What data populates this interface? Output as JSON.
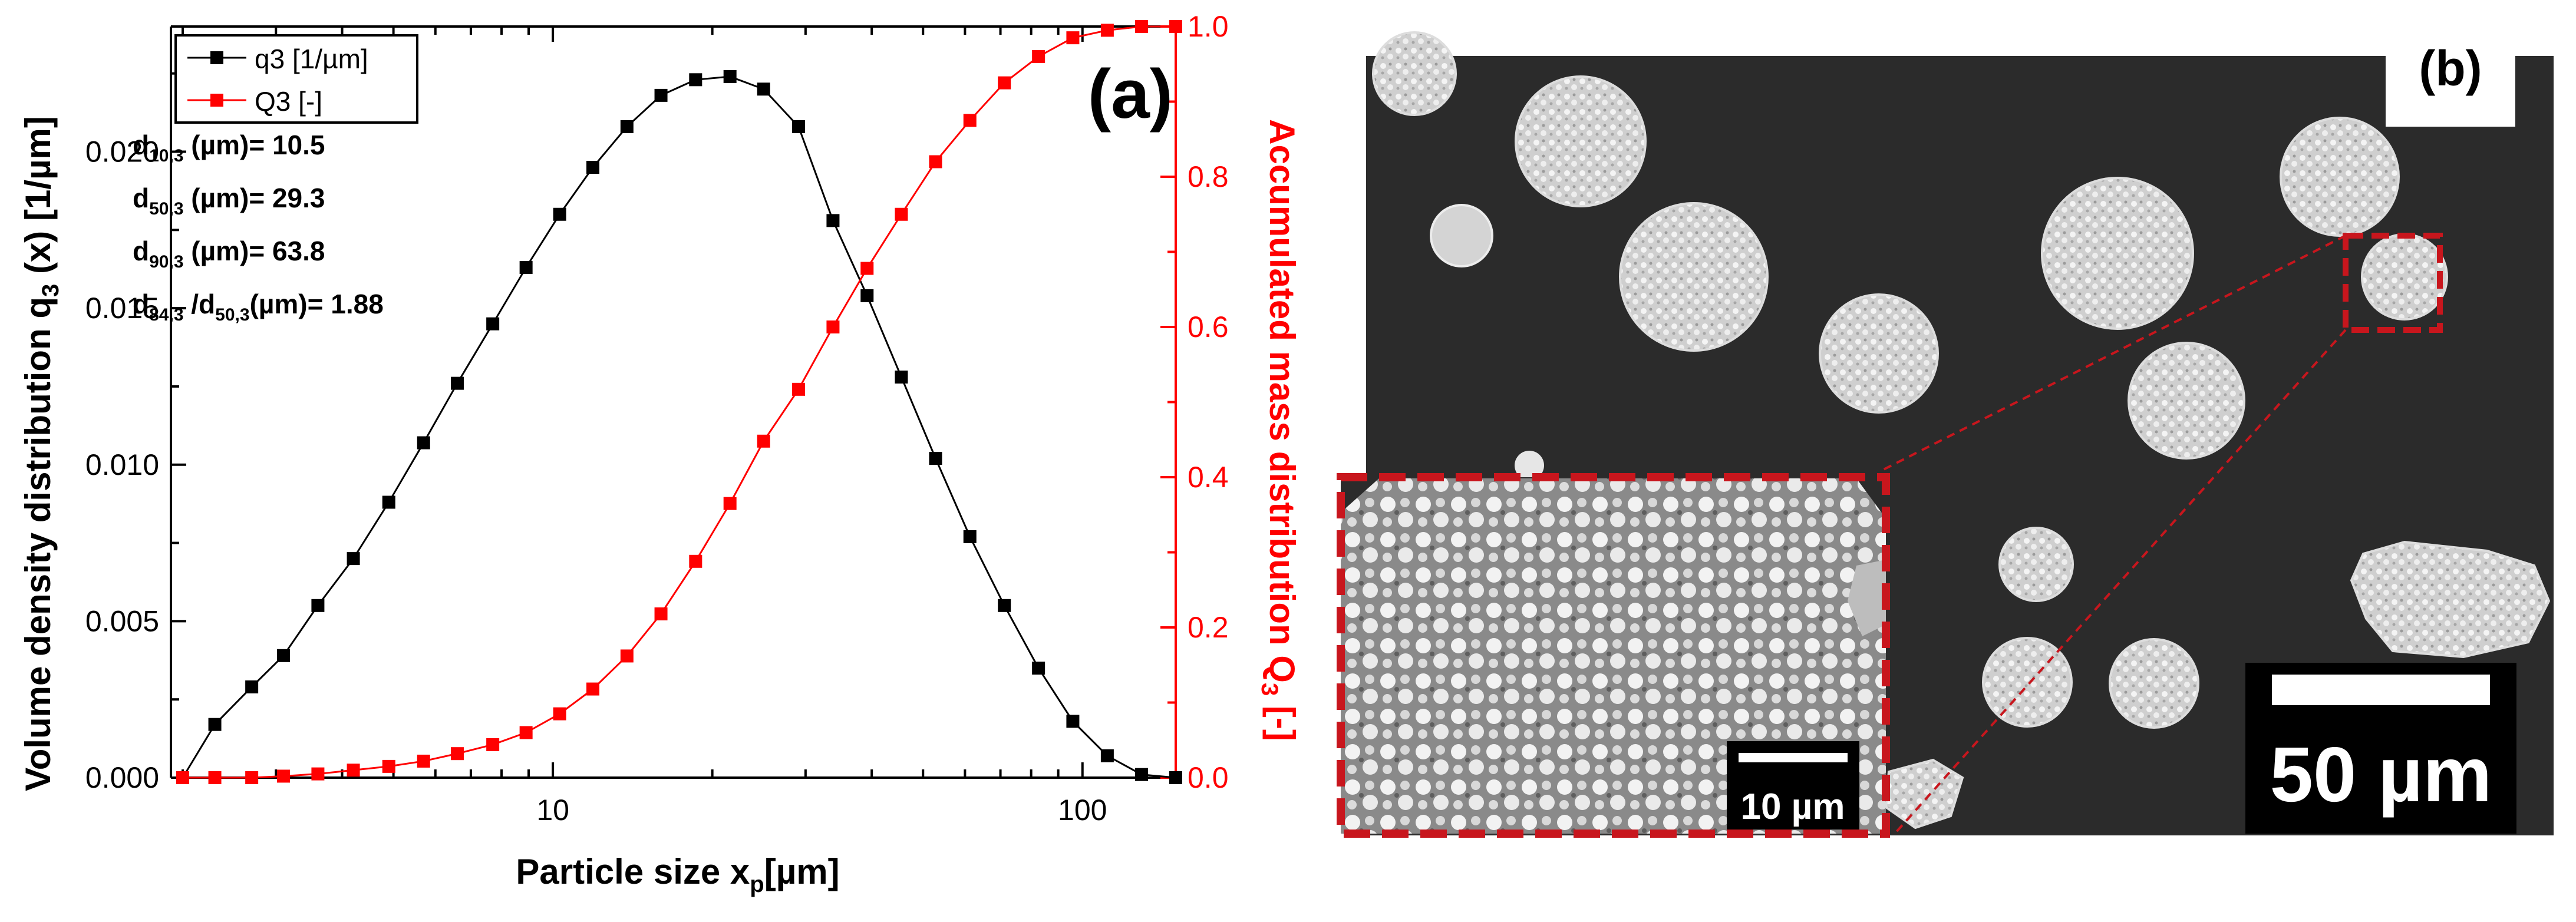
{
  "chart_data": {
    "type": "line",
    "x_scale": "log",
    "xlim": [
      1.9,
      150
    ],
    "x_ticks": [
      10,
      100
    ],
    "x_tick_labels": [
      "10",
      "100"
    ],
    "xlabel_pre": "Particle size x",
    "xlabel_sub": "p",
    "xlabel_post": "[µm]",
    "ylabel_left_pre": "Volume density distribution q",
    "ylabel_left_sub": "3",
    "ylabel_left_post": " (x) [1/µm]",
    "ylim_left": [
      0,
      0.024
    ],
    "y_ticks_left": [
      "0.000",
      "0.005",
      "0.010",
      "0.015",
      "0.020"
    ],
    "ylabel_right_pre": "Accumulated mass distribution Q",
    "ylabel_right_sub": "3",
    "ylabel_right_post": " [-]",
    "ylim_right": [
      0,
      1.0
    ],
    "y_ticks_right": [
      "0.0",
      "0.2",
      "0.4",
      "0.6",
      "0.8",
      "1.0"
    ],
    "panel_label": "(a)",
    "x": [
      2.0,
      2.3,
      2.7,
      3.1,
      3.6,
      4.2,
      4.9,
      5.7,
      6.6,
      7.7,
      8.9,
      10.3,
      11.9,
      13.8,
      16.0,
      18.6,
      21.6,
      25.0,
      29.1,
      33.8,
      39.2,
      45.5,
      52.8,
      61.3,
      71.2,
      82.6,
      95.9,
      111.4,
      129.3,
      150.0
    ],
    "series": [
      {
        "name": "q3 [1/µm]",
        "axis": "left",
        "color": "#000000",
        "values": [
          0.0,
          0.0017,
          0.0029,
          0.0039,
          0.0055,
          0.007,
          0.0088,
          0.0107,
          0.0126,
          0.0145,
          0.0163,
          0.018,
          0.0195,
          0.0208,
          0.0218,
          0.0223,
          0.0224,
          0.022,
          0.0208,
          0.0178,
          0.0154,
          0.0128,
          0.0102,
          0.0077,
          0.0055,
          0.0035,
          0.0018,
          0.0007,
          0.0001,
          0.0
        ]
      },
      {
        "name": "Q3 [-]",
        "axis": "right",
        "color": "#ff0000",
        "values": [
          0.0,
          0.0,
          0.0,
          0.002,
          0.005,
          0.01,
          0.015,
          0.022,
          0.032,
          0.044,
          0.06,
          0.085,
          0.118,
          0.162,
          0.218,
          0.288,
          0.365,
          0.448,
          0.517,
          0.6,
          0.678,
          0.75,
          0.82,
          0.875,
          0.925,
          0.96,
          0.985,
          0.995,
          1.0,
          1.0
        ]
      }
    ],
    "legend": "top-left",
    "annotations": [
      {
        "pre": "d",
        "sub": "10,3",
        "post": " (µm)= 10.5"
      },
      {
        "pre": "d",
        "sub": "50,3",
        "post": " (µm)= 29.3"
      },
      {
        "pre": "d",
        "sub": "90,3",
        "post": " (µm)= 63.8"
      },
      {
        "pre": "d",
        "sub": "84,3",
        "mid": " /d",
        "sub2": "50,3",
        "post": "(µm)= 1.88"
      }
    ]
  },
  "panel_b": {
    "label": "(b)",
    "scale_main": "50 µm",
    "scale_inset": "10 µm"
  },
  "colors": {
    "q3": "#000000",
    "Q3": "#ff0000",
    "highlight": "#c8161d",
    "sem_bg": "#2a2a2a"
  }
}
